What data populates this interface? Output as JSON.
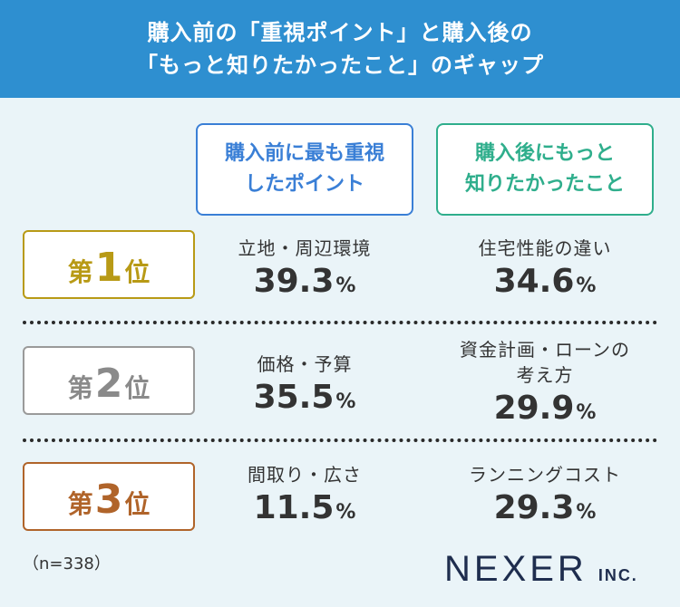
{
  "header": {
    "title_line1": "購入前の「重視ポイント」と購入後の",
    "title_line2": "「もっと知りたかったこと」のギャップ"
  },
  "columns": {
    "before_line1": "購入前に最も重視",
    "before_line2": "したポイント",
    "after_line1": "購入後にもっと",
    "after_line2": "知りたかったこと"
  },
  "rows": [
    {
      "rank_prefix": "第",
      "rank_num": "1",
      "rank_suffix": "位",
      "before_label": "立地・周辺環境",
      "before_value": "39.3",
      "before_unit": "%",
      "after_label_line1": "住宅性能の違い",
      "after_label_line2": "",
      "after_value": "34.6",
      "after_unit": "%"
    },
    {
      "rank_prefix": "第",
      "rank_num": "2",
      "rank_suffix": "位",
      "before_label": "価格・予算",
      "before_value": "35.5",
      "before_unit": "%",
      "after_label_line1": "資金計画・ローンの",
      "after_label_line2": "考え方",
      "after_value": "29.9",
      "after_unit": "%"
    },
    {
      "rank_prefix": "第",
      "rank_num": "3",
      "rank_suffix": "位",
      "before_label": "間取り・広さ",
      "before_value": "11.5",
      "before_unit": "%",
      "after_label_line1": "ランニングコスト",
      "after_label_line2": "",
      "after_value": "29.3",
      "after_unit": "%"
    }
  ],
  "footer": {
    "sample_size": "（n=338）",
    "logo_main": "NEXER",
    "logo_sub": "INC."
  },
  "colors": {
    "header_bg": "#2e8fd0",
    "before_accent": "#3a7fd6",
    "after_accent": "#2fae8c",
    "rank1": "#b89a16",
    "rank2": "#8a8a8a",
    "rank3": "#b0642a",
    "logo": "#1e2d4e"
  }
}
